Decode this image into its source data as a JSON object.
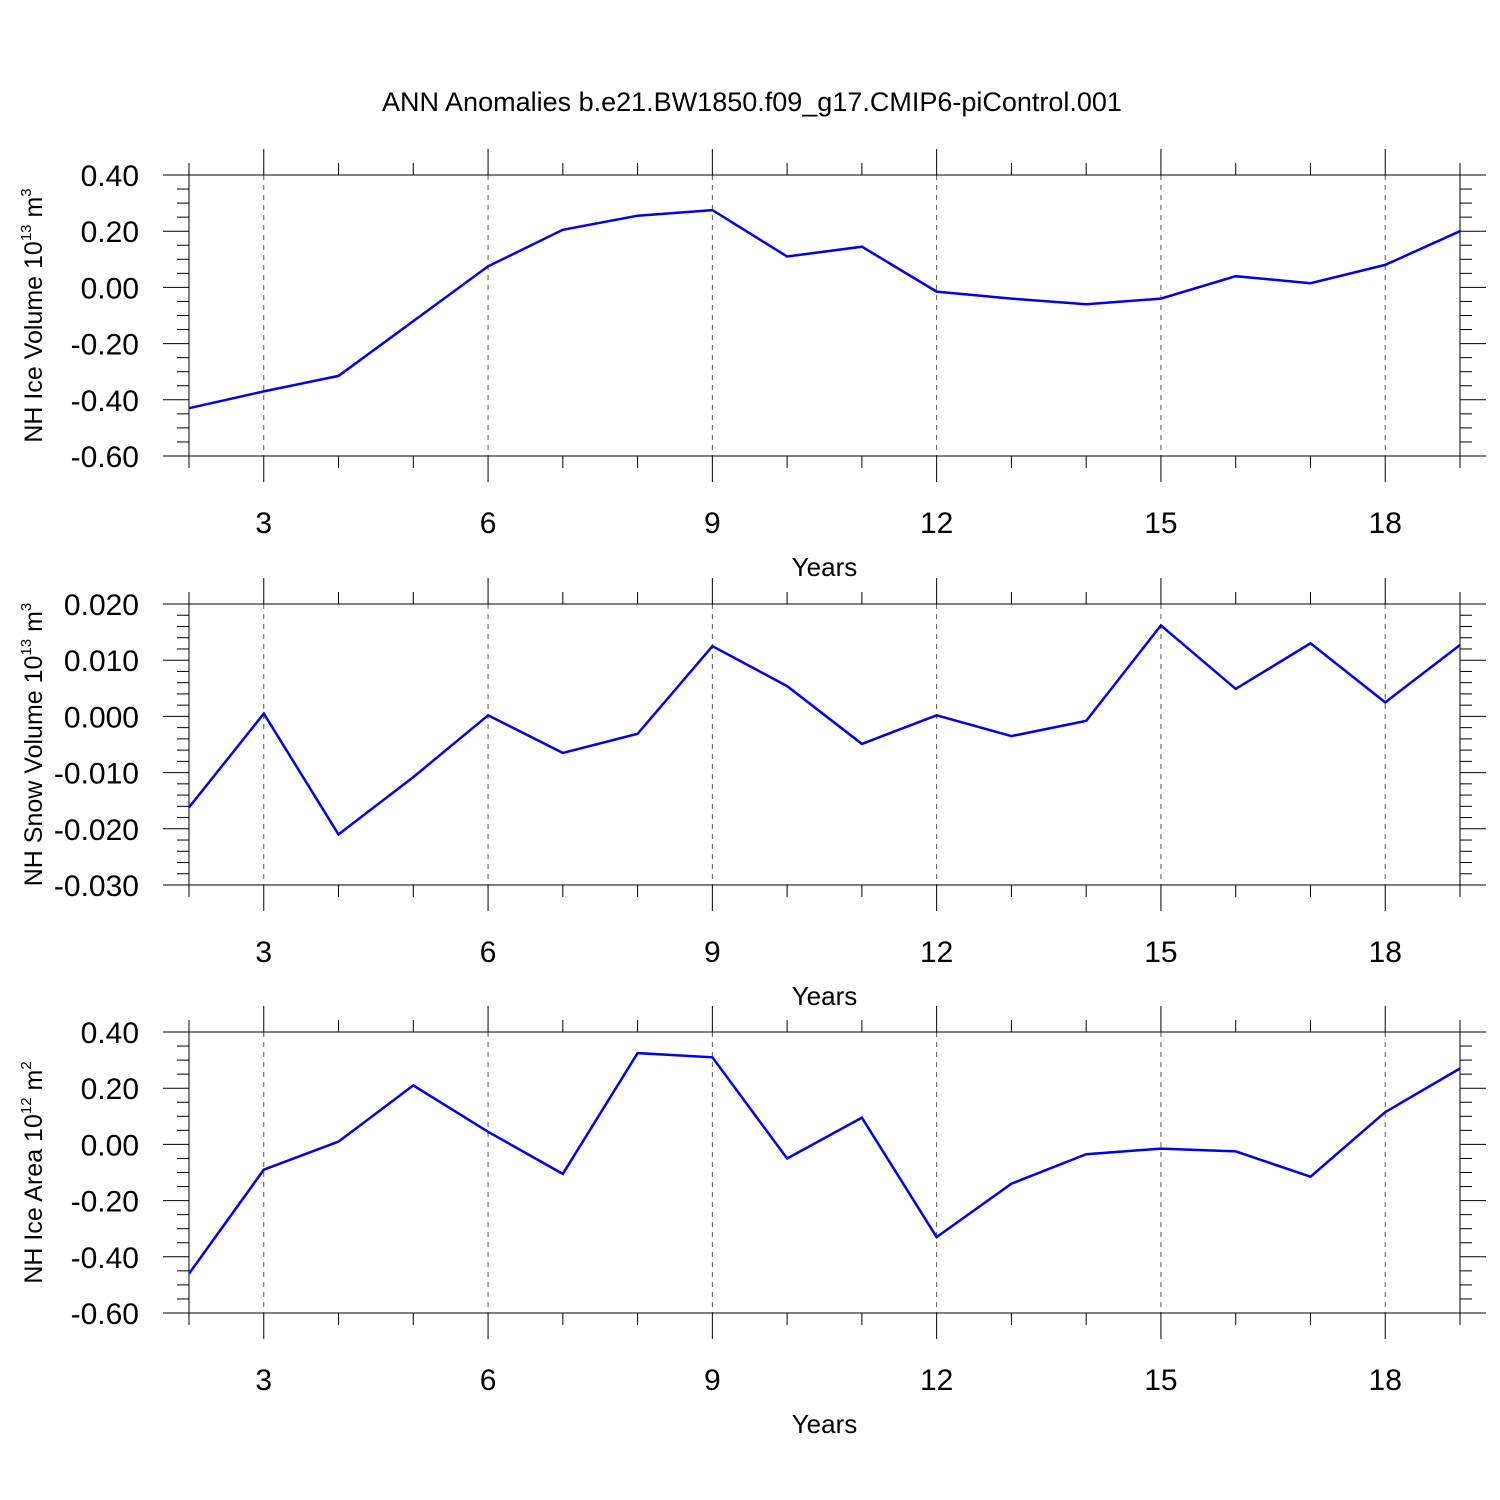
{
  "title": "ANN Anomalies b.e21.BW1850.f09_g17.CMIP6-piControl.001",
  "chart_data": [
    {
      "type": "line",
      "ylabel": "NH Ice Volume 10",
      "ylabel_exp": "13",
      "ylabel_unit": " m",
      "ylabel_unit_exp": "3",
      "xlabel": "Years",
      "xlim": [
        2,
        19
      ],
      "ylim": [
        -0.6,
        0.4
      ],
      "ytick_values": [
        0.4,
        0.2,
        0.0,
        -0.2,
        -0.4,
        -0.6
      ],
      "ytick_labels": [
        "0.40",
        "0.20",
        "0.00",
        "-0.20",
        "-0.40",
        "-0.60"
      ],
      "ymajor": 0.2,
      "yminor": 0.05,
      "xticks": [
        3,
        6,
        9,
        12,
        15,
        18
      ],
      "xtick_labels": [
        "3",
        "6",
        "9",
        "12",
        "15",
        "18"
      ],
      "grid": "vertical-dashed",
      "color": "#0000ee",
      "x": [
        2,
        3,
        4,
        5,
        6,
        7,
        8,
        9,
        10,
        11,
        12,
        13,
        14,
        15,
        16,
        17,
        18,
        19
      ],
      "values": [
        -0.43,
        -0.37,
        -0.315,
        -0.12,
        0.075,
        0.205,
        0.255,
        0.275,
        0.11,
        0.145,
        -0.015,
        -0.04,
        -0.06,
        -0.04,
        0.04,
        0.015,
        0.08,
        0.2
      ]
    },
    {
      "type": "line",
      "ylabel": "NH Snow Volume 10",
      "ylabel_exp": "13",
      "ylabel_unit": " m",
      "ylabel_unit_exp": "3",
      "xlabel": "Years",
      "xlim": [
        2,
        19
      ],
      "ylim": [
        -0.03,
        0.02
      ],
      "ytick_values": [
        0.02,
        0.01,
        0.0,
        -0.01,
        -0.02,
        -0.03
      ],
      "ytick_labels": [
        "0.020",
        "0.010",
        "0.000",
        "-0.010",
        "-0.020",
        "-0.030"
      ],
      "ymajor": 0.01,
      "yminor": 0.002,
      "xticks": [
        3,
        6,
        9,
        12,
        15,
        18
      ],
      "xtick_labels": [
        "3",
        "6",
        "9",
        "12",
        "15",
        "18"
      ],
      "grid": "vertical-dashed",
      "color": "#0000ee",
      "x": [
        2,
        3,
        4,
        5,
        6,
        7,
        8,
        9,
        10,
        11,
        12,
        13,
        14,
        15,
        16,
        17,
        18,
        19
      ],
      "values": [
        -0.0162,
        0.0005,
        -0.021,
        -0.0108,
        0.0002,
        -0.0065,
        -0.0031,
        0.0125,
        0.0054,
        -0.0049,
        0.0002,
        -0.0035,
        -0.0008,
        0.0162,
        0.0049,
        0.013,
        0.0025,
        0.0127
      ]
    },
    {
      "type": "line",
      "ylabel": "NH Ice Area 10",
      "ylabel_exp": "12",
      "ylabel_unit": " m",
      "ylabel_unit_exp": "2",
      "xlabel": "Years",
      "xlim": [
        2,
        19
      ],
      "ylim": [
        -0.6,
        0.4
      ],
      "ytick_values": [
        0.4,
        0.2,
        0.0,
        -0.2,
        -0.4,
        -0.6
      ],
      "ytick_labels": [
        "0.40",
        "0.20",
        "0.00",
        "-0.20",
        "-0.40",
        "-0.60"
      ],
      "ymajor": 0.2,
      "yminor": 0.05,
      "xticks": [
        3,
        6,
        9,
        12,
        15,
        18
      ],
      "xtick_labels": [
        "3",
        "6",
        "9",
        "12",
        "15",
        "18"
      ],
      "grid": "vertical-dashed",
      "color": "#0000ee",
      "x": [
        2,
        3,
        4,
        5,
        6,
        7,
        8,
        9,
        10,
        11,
        12,
        13,
        14,
        15,
        16,
        17,
        18,
        19
      ],
      "values": [
        -0.46,
        -0.09,
        0.01,
        0.21,
        0.045,
        -0.105,
        0.325,
        0.31,
        -0.05,
        0.095,
        -0.33,
        -0.14,
        -0.035,
        -0.015,
        -0.025,
        -0.115,
        0.115,
        0.27
      ]
    }
  ]
}
